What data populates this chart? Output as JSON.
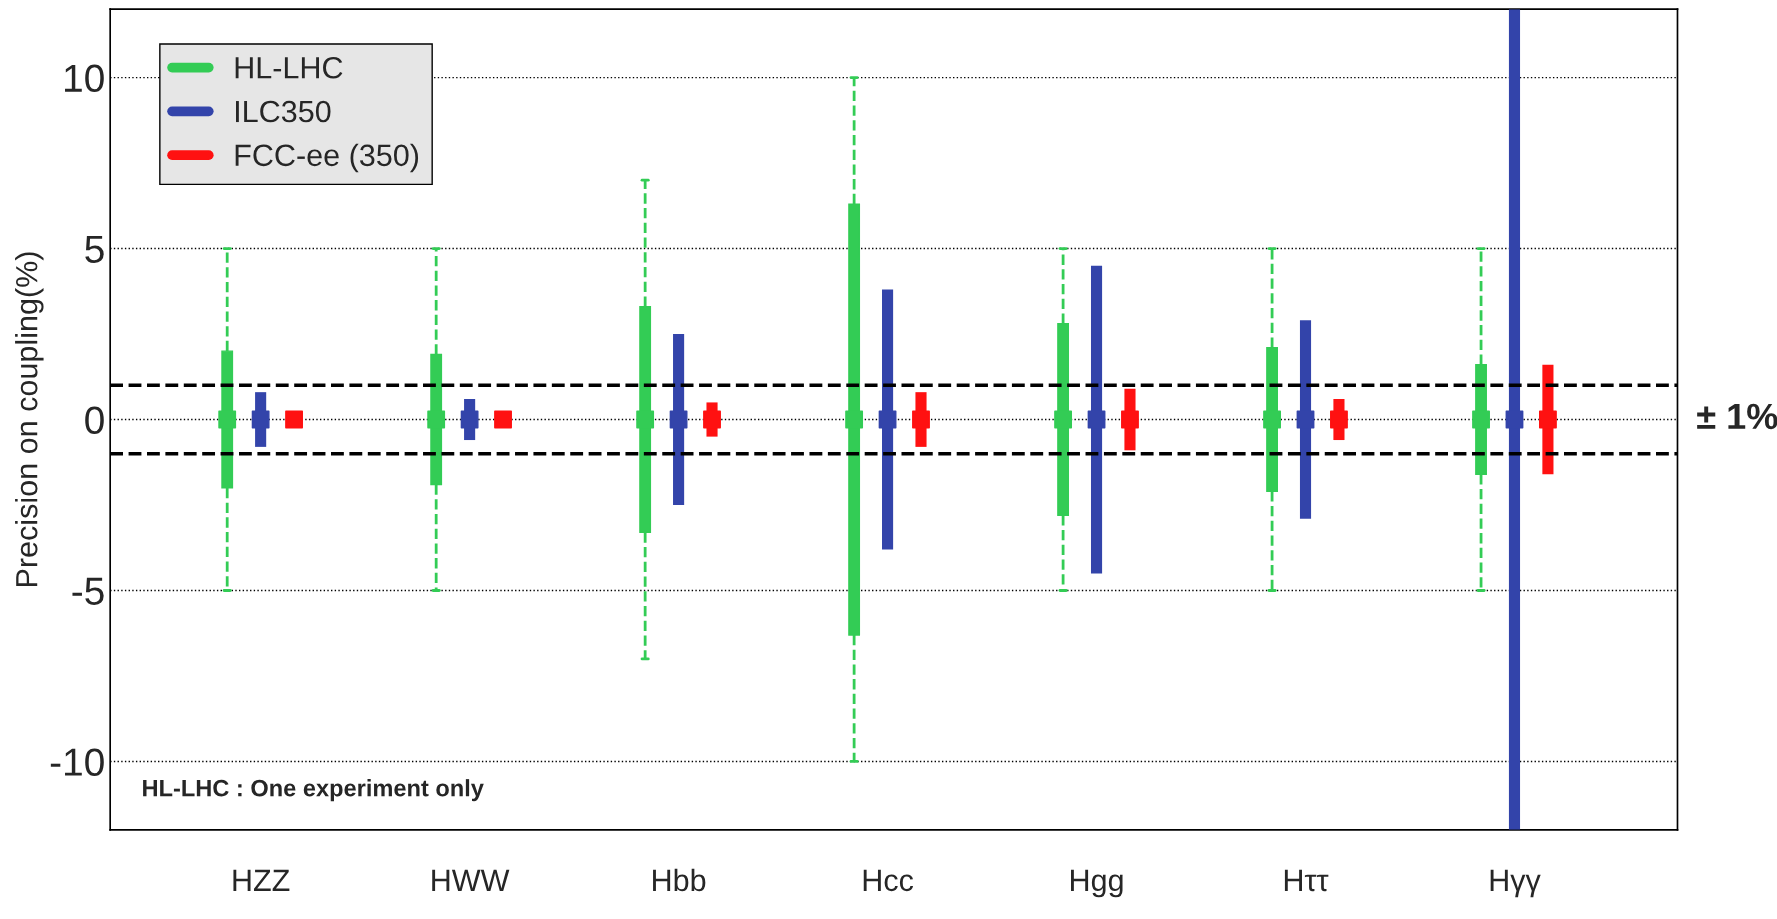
{
  "chart_data": {
    "type": "scatter",
    "ylabel": "Precision on coupling(%)",
    "categories": [
      "HZZ",
      "HWW",
      "Hbb",
      "Hcc",
      "Hgg",
      "Hττ",
      "Hγγ"
    ],
    "series": [
      {
        "name": "HL-LHC",
        "type": "box",
        "color": "#33cc55",
        "line_style": "dashed",
        "boxes": [
          {
            "low": -5,
            "q1": -2,
            "median": 0,
            "q3": 2,
            "high": 5
          },
          {
            "low": -5,
            "q1": -1.9,
            "median": 0,
            "q3": 1.9,
            "high": 5
          },
          {
            "low": -7,
            "q1": -3.3,
            "median": 0,
            "q3": 3.3,
            "high": 7
          },
          {
            "low": -10,
            "q1": -6.3,
            "median": 0,
            "q3": 6.3,
            "high": 10
          },
          {
            "low": -5,
            "q1": -2.8,
            "median": 0,
            "q3": 2.8,
            "high": 5
          },
          {
            "low": -5,
            "q1": -2.1,
            "median": 0,
            "q3": 2.1,
            "high": 5
          },
          {
            "low": -5,
            "q1": -1.6,
            "median": 0,
            "q3": 1.6,
            "high": 5
          }
        ]
      },
      {
        "name": "ILC350",
        "color": "#3344aa",
        "values": [
          0,
          0,
          0,
          0,
          0,
          0,
          0
        ],
        "errors": [
          0.8,
          0.6,
          2.5,
          3.8,
          4.5,
          2.9,
          12
        ]
      },
      {
        "name": "FCC-ee (350)",
        "color": "#ff1111",
        "values": [
          0,
          0,
          0,
          0,
          0,
          0,
          0
        ],
        "errors": [
          0.2,
          0.2,
          0.5,
          0.8,
          0.9,
          0.6,
          1.6
        ]
      }
    ],
    "ylim": [
      -12,
      12
    ],
    "yticks": [
      -10,
      -5,
      0,
      5,
      10
    ],
    "ref_lines": [
      {
        "axis": "y",
        "value": 1,
        "color": "#000000",
        "line_style": "dashed"
      },
      {
        "axis": "y",
        "value": -1,
        "color": "#000000",
        "line_style": "dashed"
      }
    ],
    "annotations": [
      "HL-LHC : One experiment only",
      "± 1%"
    ],
    "grid": "y",
    "legend": "top left",
    "marker": "square"
  }
}
